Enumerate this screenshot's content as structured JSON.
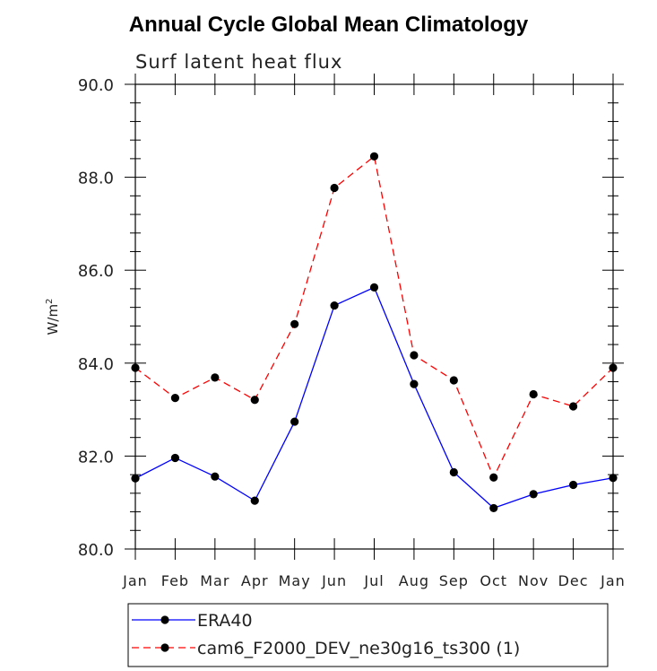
{
  "chart_data": {
    "type": "line",
    "title": "Annual Cycle Global Mean Climatology",
    "subtitle": "Surf latent heat flux",
    "ylabel": "W/m",
    "ylabel_sup": "2",
    "ylim": [
      80.0,
      90.0
    ],
    "ytick_labels": [
      "80.0",
      "82.0",
      "84.0",
      "86.0",
      "88.0",
      "90.0"
    ],
    "categories": [
      "Jan",
      "Feb",
      "Mar",
      "Apr",
      "May",
      "Jun",
      "Jul",
      "Aug",
      "Sep",
      "Oct",
      "Nov",
      "Dec",
      "Jan"
    ],
    "series": [
      {
        "name": "ERA40",
        "color": "#0000ff",
        "dash": "solid",
        "values": [
          81.52,
          81.96,
          81.56,
          81.04,
          82.74,
          85.24,
          85.63,
          83.55,
          81.65,
          80.88,
          81.18,
          81.38,
          81.53
        ]
      },
      {
        "name": "cam6_F2000_DEV_ne30g16_ts300 (1)",
        "color": "#ff0000",
        "dash": "dashed",
        "values": [
          83.9,
          83.25,
          83.69,
          83.21,
          84.84,
          87.77,
          88.45,
          84.17,
          83.63,
          81.54,
          83.33,
          83.07,
          83.9
        ]
      }
    ],
    "grid": false,
    "legend": "bottom"
  }
}
